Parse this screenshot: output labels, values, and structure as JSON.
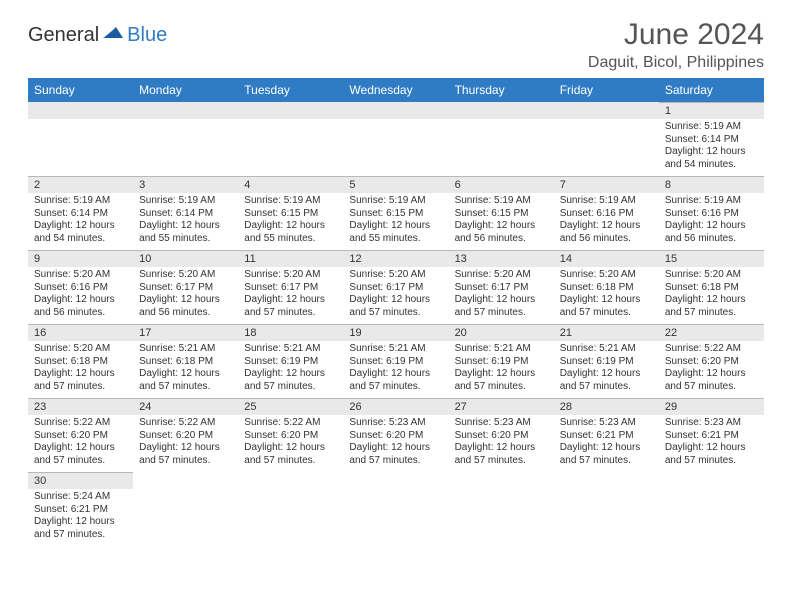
{
  "logo": {
    "general": "General",
    "blue": "Blue",
    "colors": {
      "general": "#333333",
      "blue": "#2f7cc4"
    }
  },
  "title": "June 2024",
  "location": "Daguit, Bicol, Philippines",
  "calendar": {
    "header_bg": "#2f7cc4",
    "header_fg": "#ffffff",
    "daynum_bg": "#e9e9e9",
    "border_color": "#b8b8b8",
    "text_color": "#333333",
    "day_names": [
      "Sunday",
      "Monday",
      "Tuesday",
      "Wednesday",
      "Thursday",
      "Friday",
      "Saturday"
    ],
    "weeks": [
      [
        null,
        null,
        null,
        null,
        null,
        null,
        {
          "n": "1",
          "sr": "Sunrise: 5:19 AM",
          "ss": "Sunset: 6:14 PM",
          "dl": "Daylight: 12 hours and 54 minutes."
        }
      ],
      [
        {
          "n": "2",
          "sr": "Sunrise: 5:19 AM",
          "ss": "Sunset: 6:14 PM",
          "dl": "Daylight: 12 hours and 54 minutes."
        },
        {
          "n": "3",
          "sr": "Sunrise: 5:19 AM",
          "ss": "Sunset: 6:14 PM",
          "dl": "Daylight: 12 hours and 55 minutes."
        },
        {
          "n": "4",
          "sr": "Sunrise: 5:19 AM",
          "ss": "Sunset: 6:15 PM",
          "dl": "Daylight: 12 hours and 55 minutes."
        },
        {
          "n": "5",
          "sr": "Sunrise: 5:19 AM",
          "ss": "Sunset: 6:15 PM",
          "dl": "Daylight: 12 hours and 55 minutes."
        },
        {
          "n": "6",
          "sr": "Sunrise: 5:19 AM",
          "ss": "Sunset: 6:15 PM",
          "dl": "Daylight: 12 hours and 56 minutes."
        },
        {
          "n": "7",
          "sr": "Sunrise: 5:19 AM",
          "ss": "Sunset: 6:16 PM",
          "dl": "Daylight: 12 hours and 56 minutes."
        },
        {
          "n": "8",
          "sr": "Sunrise: 5:19 AM",
          "ss": "Sunset: 6:16 PM",
          "dl": "Daylight: 12 hours and 56 minutes."
        }
      ],
      [
        {
          "n": "9",
          "sr": "Sunrise: 5:20 AM",
          "ss": "Sunset: 6:16 PM",
          "dl": "Daylight: 12 hours and 56 minutes."
        },
        {
          "n": "10",
          "sr": "Sunrise: 5:20 AM",
          "ss": "Sunset: 6:17 PM",
          "dl": "Daylight: 12 hours and 56 minutes."
        },
        {
          "n": "11",
          "sr": "Sunrise: 5:20 AM",
          "ss": "Sunset: 6:17 PM",
          "dl": "Daylight: 12 hours and 57 minutes."
        },
        {
          "n": "12",
          "sr": "Sunrise: 5:20 AM",
          "ss": "Sunset: 6:17 PM",
          "dl": "Daylight: 12 hours and 57 minutes."
        },
        {
          "n": "13",
          "sr": "Sunrise: 5:20 AM",
          "ss": "Sunset: 6:17 PM",
          "dl": "Daylight: 12 hours and 57 minutes."
        },
        {
          "n": "14",
          "sr": "Sunrise: 5:20 AM",
          "ss": "Sunset: 6:18 PM",
          "dl": "Daylight: 12 hours and 57 minutes."
        },
        {
          "n": "15",
          "sr": "Sunrise: 5:20 AM",
          "ss": "Sunset: 6:18 PM",
          "dl": "Daylight: 12 hours and 57 minutes."
        }
      ],
      [
        {
          "n": "16",
          "sr": "Sunrise: 5:20 AM",
          "ss": "Sunset: 6:18 PM",
          "dl": "Daylight: 12 hours and 57 minutes."
        },
        {
          "n": "17",
          "sr": "Sunrise: 5:21 AM",
          "ss": "Sunset: 6:18 PM",
          "dl": "Daylight: 12 hours and 57 minutes."
        },
        {
          "n": "18",
          "sr": "Sunrise: 5:21 AM",
          "ss": "Sunset: 6:19 PM",
          "dl": "Daylight: 12 hours and 57 minutes."
        },
        {
          "n": "19",
          "sr": "Sunrise: 5:21 AM",
          "ss": "Sunset: 6:19 PM",
          "dl": "Daylight: 12 hours and 57 minutes."
        },
        {
          "n": "20",
          "sr": "Sunrise: 5:21 AM",
          "ss": "Sunset: 6:19 PM",
          "dl": "Daylight: 12 hours and 57 minutes."
        },
        {
          "n": "21",
          "sr": "Sunrise: 5:21 AM",
          "ss": "Sunset: 6:19 PM",
          "dl": "Daylight: 12 hours and 57 minutes."
        },
        {
          "n": "22",
          "sr": "Sunrise: 5:22 AM",
          "ss": "Sunset: 6:20 PM",
          "dl": "Daylight: 12 hours and 57 minutes."
        }
      ],
      [
        {
          "n": "23",
          "sr": "Sunrise: 5:22 AM",
          "ss": "Sunset: 6:20 PM",
          "dl": "Daylight: 12 hours and 57 minutes."
        },
        {
          "n": "24",
          "sr": "Sunrise: 5:22 AM",
          "ss": "Sunset: 6:20 PM",
          "dl": "Daylight: 12 hours and 57 minutes."
        },
        {
          "n": "25",
          "sr": "Sunrise: 5:22 AM",
          "ss": "Sunset: 6:20 PM",
          "dl": "Daylight: 12 hours and 57 minutes."
        },
        {
          "n": "26",
          "sr": "Sunrise: 5:23 AM",
          "ss": "Sunset: 6:20 PM",
          "dl": "Daylight: 12 hours and 57 minutes."
        },
        {
          "n": "27",
          "sr": "Sunrise: 5:23 AM",
          "ss": "Sunset: 6:20 PM",
          "dl": "Daylight: 12 hours and 57 minutes."
        },
        {
          "n": "28",
          "sr": "Sunrise: 5:23 AM",
          "ss": "Sunset: 6:21 PM",
          "dl": "Daylight: 12 hours and 57 minutes."
        },
        {
          "n": "29",
          "sr": "Sunrise: 5:23 AM",
          "ss": "Sunset: 6:21 PM",
          "dl": "Daylight: 12 hours and 57 minutes."
        }
      ],
      [
        {
          "n": "30",
          "sr": "Sunrise: 5:24 AM",
          "ss": "Sunset: 6:21 PM",
          "dl": "Daylight: 12 hours and 57 minutes."
        },
        null,
        null,
        null,
        null,
        null,
        null
      ]
    ]
  }
}
